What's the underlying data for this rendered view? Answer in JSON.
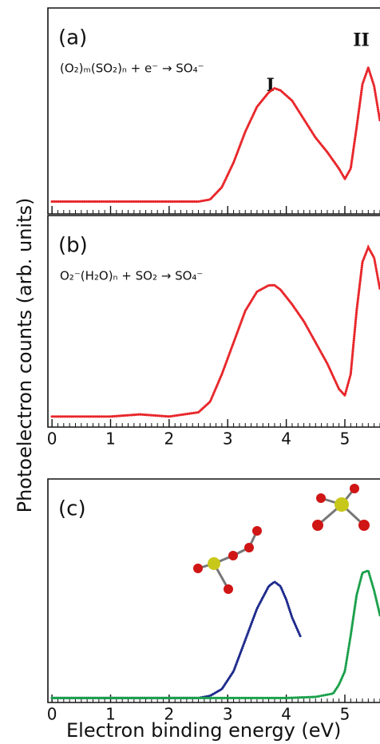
{
  "ylabel": "Photoelectron counts (arb. units)",
  "chart_data": [
    {
      "type": "line",
      "panel_label": "(a)",
      "reaction": "(O₂)ₘ(SO₂)ₙ + e⁻ → SO₄⁻",
      "annotations": [
        {
          "text": "I",
          "x": 3.73,
          "y": 0.62
        },
        {
          "text": "II",
          "x": 5.28,
          "y": 0.84
        }
      ],
      "xlim": [
        -0.07,
        5.6
      ],
      "ylim": [
        0,
        1
      ],
      "xticks": [
        0,
        1,
        2,
        3,
        4,
        5
      ],
      "xtick_labels": false,
      "minor_xtick_step": 0.1,
      "series": [
        {
          "color": "#e8262a",
          "x": [
            0,
            0.5,
            1,
            1.5,
            2,
            2.5,
            2.7,
            2.9,
            3.1,
            3.3,
            3.5,
            3.7,
            3.8,
            3.9,
            4.1,
            4.3,
            4.5,
            4.7,
            4.9,
            5.0,
            5.1,
            5.2,
            5.3,
            5.4,
            5.5,
            5.6
          ],
          "values": [
            0.06,
            0.06,
            0.06,
            0.06,
            0.06,
            0.06,
            0.07,
            0.13,
            0.25,
            0.4,
            0.52,
            0.59,
            0.61,
            0.6,
            0.55,
            0.46,
            0.37,
            0.3,
            0.22,
            0.17,
            0.22,
            0.42,
            0.63,
            0.71,
            0.62,
            0.45
          ]
        }
      ]
    },
    {
      "type": "line",
      "panel_label": "(b)",
      "reaction": "O₂⁻(H₂O)ₙ + SO₂ → SO₄⁻",
      "xlim": [
        -0.07,
        5.6
      ],
      "ylim": [
        0,
        1
      ],
      "xticks": [
        0,
        1,
        2,
        3,
        4,
        5
      ],
      "xtick_labels": true,
      "minor_xtick_step": 0.1,
      "series": [
        {
          "color": "#e8262a",
          "x": [
            0,
            0.5,
            1,
            1.5,
            2,
            2.5,
            2.7,
            2.9,
            3.1,
            3.3,
            3.5,
            3.7,
            3.8,
            3.9,
            4.1,
            4.3,
            4.5,
            4.7,
            4.9,
            5.0,
            5.1,
            5.2,
            5.3,
            5.4,
            5.5,
            5.6
          ],
          "values": [
            0.05,
            0.05,
            0.05,
            0.06,
            0.05,
            0.07,
            0.12,
            0.25,
            0.4,
            0.55,
            0.64,
            0.67,
            0.67,
            0.65,
            0.58,
            0.5,
            0.4,
            0.3,
            0.18,
            0.15,
            0.25,
            0.55,
            0.78,
            0.85,
            0.8,
            0.65
          ]
        }
      ]
    },
    {
      "type": "line",
      "panel_label": "(c)",
      "xlabel": "Electron binding energy (eV)",
      "xlim": [
        -0.07,
        5.6
      ],
      "ylim": [
        0,
        1
      ],
      "xticks": [
        0,
        1,
        2,
        3,
        4,
        5
      ],
      "xtick_labels": true,
      "minor_xtick_step": 0.1,
      "series": [
        {
          "color": "#1e2a8c",
          "x": [
            0,
            0.5,
            1,
            1.5,
            2,
            2.5,
            2.7,
            2.9,
            3.1,
            3.3,
            3.5,
            3.7,
            3.8,
            3.9,
            4.0,
            4.1,
            4.2,
            4.25
          ],
          "values": [
            0.02,
            0.02,
            0.02,
            0.02,
            0.02,
            0.02,
            0.03,
            0.06,
            0.14,
            0.28,
            0.42,
            0.52,
            0.54,
            0.52,
            0.46,
            0.38,
            0.32,
            0.29
          ]
        },
        {
          "color": "#1aa04a",
          "x": [
            0,
            1,
            2,
            3,
            4,
            4.5,
            4.8,
            4.9,
            5.0,
            5.1,
            5.2,
            5.3,
            5.4,
            5.5,
            5.6
          ],
          "values": [
            0.02,
            0.02,
            0.02,
            0.02,
            0.02,
            0.025,
            0.04,
            0.08,
            0.14,
            0.3,
            0.48,
            0.58,
            0.59,
            0.5,
            0.39
          ]
        }
      ]
    }
  ]
}
